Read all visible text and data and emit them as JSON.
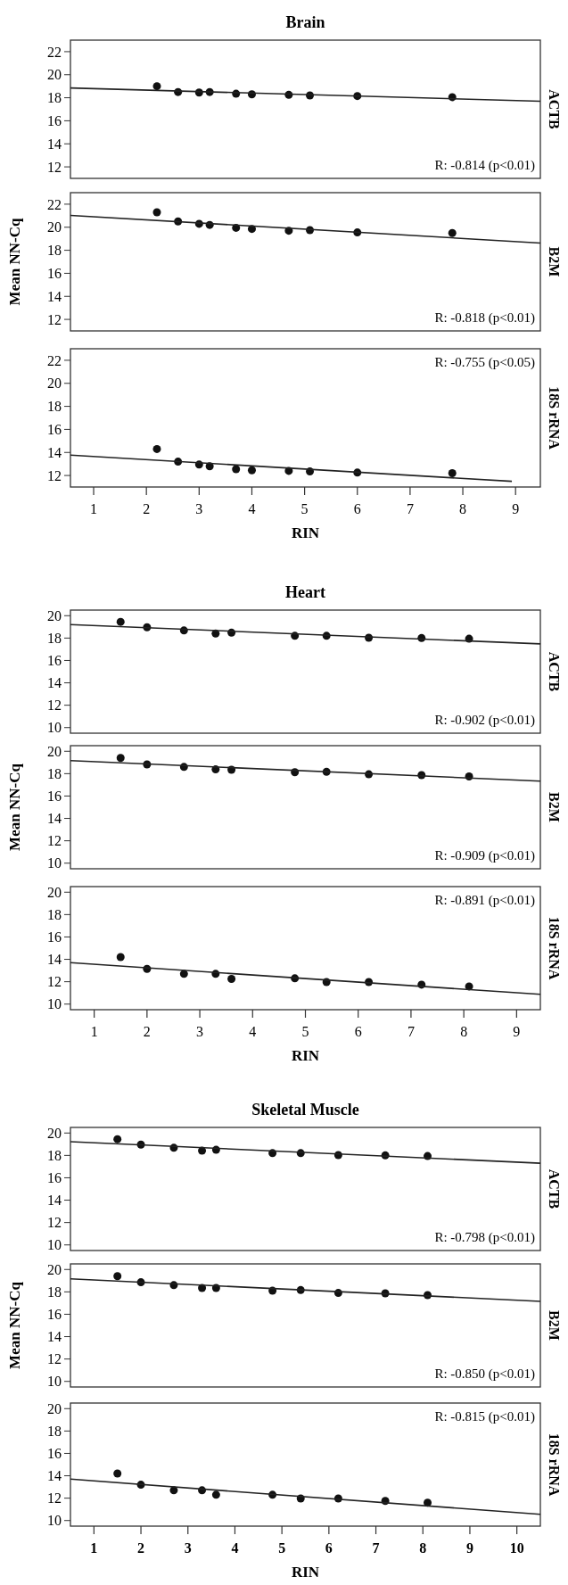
{
  "chart_data": [
    {
      "type": "scatter",
      "title": "Brain",
      "y2label": "ACTB",
      "annotations": [
        "R: -0.814 (p<0.01)"
      ],
      "xlim": [
        0.56,
        9.47
      ],
      "ylim": [
        11,
        23
      ],
      "yticks": [
        12,
        14,
        16,
        18,
        20,
        22
      ],
      "tick_labels": "y",
      "series": [
        {
          "color": "#111111",
          "marker": "circle",
          "x": [
            2.2,
            2.6,
            3.0,
            3.2,
            3.7,
            4.0,
            4.7,
            5.1,
            6.0,
            7.8
          ],
          "values": [
            19.0,
            18.5,
            18.45,
            18.5,
            18.35,
            18.3,
            18.25,
            18.2,
            18.15,
            18.05
          ]
        },
        {
          "type": "line",
          "color": "#222222",
          "x": [
            0.56,
            9.47
          ],
          "values": [
            18.85,
            17.7
          ]
        }
      ]
    },
    {
      "type": "scatter",
      "ylabel": "Mean NN-Cq",
      "y2label": "B2M",
      "annotations": [
        "R: -0.818 (p<0.01)"
      ],
      "xlim": [
        0.56,
        9.47
      ],
      "ylim": [
        11,
        23
      ],
      "yticks": [
        12,
        14,
        16,
        18,
        20,
        22
      ],
      "tick_labels": "y",
      "series": [
        {
          "color": "#111111",
          "marker": "circle",
          "x": [
            2.2,
            2.6,
            3.0,
            3.2,
            3.7,
            4.0,
            4.7,
            5.1,
            6.0,
            7.8
          ],
          "values": [
            21.3,
            20.5,
            20.3,
            20.2,
            19.95,
            19.85,
            19.7,
            19.75,
            19.55,
            19.5
          ]
        },
        {
          "type": "line",
          "color": "#222222",
          "x": [
            0.56,
            9.47
          ],
          "values": [
            21.03,
            18.63
          ]
        }
      ]
    },
    {
      "type": "scatter",
      "xlabel": "RIN",
      "y2label": "18S rRNA",
      "annotations": [
        "R: -0.755 (p<0.05)"
      ],
      "xlim": [
        0.56,
        9.47
      ],
      "ylim": [
        11,
        23
      ],
      "xticks": [
        1,
        2,
        3,
        4,
        5,
        6,
        7,
        8,
        9
      ],
      "yticks": [
        12,
        14,
        16,
        18,
        20,
        22
      ],
      "series": [
        {
          "color": "#111111",
          "marker": "circle",
          "x": [
            2.2,
            2.6,
            3.0,
            3.2,
            3.7,
            4.0,
            4.7,
            5.1,
            6.0,
            7.8
          ],
          "values": [
            14.3,
            13.2,
            12.95,
            12.8,
            12.55,
            12.45,
            12.4,
            12.35,
            12.25,
            12.2
          ]
        },
        {
          "type": "line",
          "color": "#222222",
          "x": [
            0.56,
            8.93
          ],
          "values": [
            13.77,
            11.49
          ]
        }
      ]
    },
    {
      "type": "scatter",
      "title": "Heart",
      "y2label": "ACTB",
      "annotations": [
        "R: -0.902 (p<0.01)"
      ],
      "xlim": [
        0.55,
        9.45
      ],
      "ylim": [
        9.5,
        20.5
      ],
      "yticks": [
        10,
        12,
        14,
        16,
        18,
        20
      ],
      "tick_labels": "y",
      "series": [
        {
          "color": "#111111",
          "marker": "circle",
          "x": [
            1.5,
            2.0,
            2.7,
            3.3,
            3.6,
            4.8,
            5.4,
            6.2,
            7.2,
            8.1
          ],
          "values": [
            19.45,
            18.97,
            18.68,
            18.4,
            18.48,
            18.2,
            18.2,
            18.03,
            18.0,
            17.94
          ]
        },
        {
          "type": "line",
          "color": "#222222",
          "x": [
            0.55,
            9.45
          ],
          "values": [
            19.2,
            17.48
          ]
        }
      ]
    },
    {
      "type": "scatter",
      "ylabel": "Mean NN-Cq",
      "y2label": "B2M",
      "annotations": [
        "R: -0.909 (p<0.01)"
      ],
      "xlim": [
        0.55,
        9.45
      ],
      "ylim": [
        9.5,
        20.5
      ],
      "yticks": [
        10,
        12,
        14,
        16,
        18,
        20
      ],
      "tick_labels": "y",
      "series": [
        {
          "color": "#111111",
          "marker": "circle",
          "x": [
            1.5,
            2.0,
            2.7,
            3.3,
            3.6,
            4.8,
            5.4,
            6.2,
            7.2,
            8.1
          ],
          "values": [
            19.4,
            18.83,
            18.6,
            18.38,
            18.35,
            18.13,
            18.16,
            17.94,
            17.87,
            17.75
          ]
        },
        {
          "type": "line",
          "color": "#222222",
          "x": [
            0.55,
            9.45
          ],
          "values": [
            19.17,
            17.33
          ]
        }
      ]
    },
    {
      "type": "scatter",
      "xlabel": "RIN",
      "y2label": "18S rRNA",
      "annotations": [
        "R: -0.891 (p<0.01)"
      ],
      "xlim": [
        0.55,
        9.45
      ],
      "ylim": [
        9.5,
        20.5
      ],
      "xticks": [
        1,
        2,
        3,
        4,
        5,
        6,
        7,
        8,
        9
      ],
      "yticks": [
        10,
        12,
        14,
        16,
        18,
        20
      ],
      "series": [
        {
          "color": "#111111",
          "marker": "circle",
          "x": [
            1.5,
            2.0,
            2.7,
            3.3,
            3.6,
            4.8,
            5.4,
            6.2,
            7.2,
            8.1
          ],
          "values": [
            14.2,
            13.15,
            12.7,
            12.7,
            12.25,
            12.3,
            11.97,
            11.97,
            11.74,
            11.58
          ]
        },
        {
          "type": "line",
          "color": "#222222",
          "x": [
            0.55,
            9.45
          ],
          "values": [
            13.7,
            10.87
          ]
        }
      ]
    },
    {
      "type": "scatter",
      "title": "Skeletal Muscle",
      "y2label": "ACTB",
      "annotations": [
        "R: -0.798 (p<0.01)"
      ],
      "xlim": [
        0.5,
        10.5
      ],
      "ylim": [
        9.5,
        20.5
      ],
      "yticks": [
        10,
        12,
        14,
        16,
        18,
        20
      ],
      "tick_labels": "y",
      "series": [
        {
          "color": "#111111",
          "marker": "circle",
          "x": [
            1.5,
            2.0,
            2.7,
            3.3,
            3.6,
            4.8,
            5.4,
            6.2,
            7.2,
            8.1
          ],
          "values": [
            19.45,
            18.97,
            18.68,
            18.42,
            18.5,
            18.2,
            18.2,
            18.03,
            18.0,
            17.94
          ]
        },
        {
          "type": "line",
          "color": "#222222",
          "x": [
            0.5,
            10.5
          ],
          "values": [
            19.23,
            17.3
          ]
        }
      ]
    },
    {
      "type": "scatter",
      "ylabel": "Mean NN-Cq",
      "y2label": "B2M",
      "annotations": [
        "R: -0.850 (p<0.01)"
      ],
      "xlim": [
        0.5,
        10.5
      ],
      "ylim": [
        9.5,
        20.5
      ],
      "yticks": [
        10,
        12,
        14,
        16,
        18,
        20
      ],
      "tick_labels": "y",
      "series": [
        {
          "color": "#111111",
          "marker": "circle",
          "x": [
            1.5,
            2.0,
            2.7,
            3.3,
            3.6,
            4.8,
            5.4,
            6.2,
            7.2,
            8.1
          ],
          "values": [
            19.4,
            18.86,
            18.6,
            18.35,
            18.35,
            18.1,
            18.16,
            17.9,
            17.87,
            17.71
          ]
        },
        {
          "type": "line",
          "color": "#222222",
          "x": [
            0.5,
            10.5
          ],
          "values": [
            19.17,
            17.15
          ]
        }
      ]
    },
    {
      "type": "scatter",
      "xlabel": "RIN",
      "y2label": "18S rRNA",
      "annotations": [
        "R: -0.815 (p<0.01)"
      ],
      "xlim": [
        0.5,
        10.5
      ],
      "ylim": [
        9.5,
        20.5
      ],
      "xticks": [
        1,
        2,
        3,
        4,
        5,
        6,
        7,
        8,
        9,
        10
      ],
      "yticks": [
        10,
        12,
        14,
        16,
        18,
        20
      ],
      "series": [
        {
          "color": "#111111",
          "marker": "circle",
          "x": [
            1.5,
            2.0,
            2.7,
            3.3,
            3.6,
            4.8,
            5.4,
            6.2,
            7.2,
            8.1
          ],
          "values": [
            14.2,
            13.2,
            12.7,
            12.7,
            12.3,
            12.3,
            11.97,
            11.97,
            11.75,
            11.6
          ]
        },
        {
          "type": "line",
          "color": "#222222",
          "x": [
            0.5,
            10.5
          ],
          "values": [
            13.7,
            10.55
          ]
        }
      ]
    }
  ]
}
